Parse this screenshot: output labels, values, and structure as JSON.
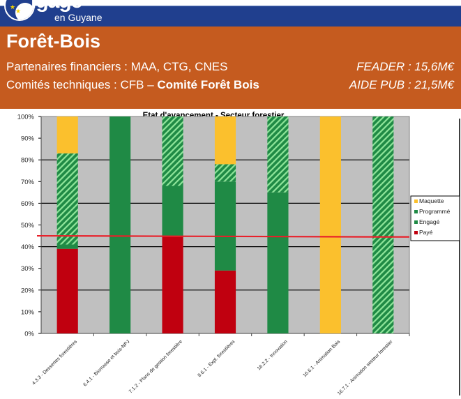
{
  "header": {
    "logo_word": "igage",
    "logo_prefix": "S",
    "logo_sub": "en Guyane",
    "section_title": "Forêt-Bois",
    "partners_label": "Partenaires financiers : MAA, CTG, CNES",
    "committees_prefix": "Comités techniques : CFB – ",
    "committees_bold": "Comité Forêt Bois",
    "feader": "FEADER : 15,6M€",
    "aide_pub": "AIDE PUB : 21,5M€"
  },
  "colors": {
    "blue_band": "#203f8e",
    "orange_band": "#c55b1f",
    "maquette": "#fbc02d",
    "programme": "#1f8a45",
    "programme_hatch": "#8fe59a",
    "engage": "#1f8a45",
    "paye": "#c0000f",
    "plot_bg": "#c0c0c0",
    "reference_line": "#e8202a"
  },
  "chart_data": {
    "type": "bar",
    "stacked": true,
    "title": "Etat d'avancement - Secteur forestier",
    "xlabel": "",
    "ylabel": "",
    "ylim": [
      0,
      100
    ],
    "y_ticks": [
      "0%",
      "10%",
      "20%",
      "30%",
      "40%",
      "50%",
      "60%",
      "70%",
      "80%",
      "90%",
      "100%"
    ],
    "grid": true,
    "legend_position": "right",
    "categories": [
      "4.3.3 - Dessertes forestières",
      "6.4.1 - Biomasse et bois-NPJ",
      "7.1.2 - Plans de gestion forestière",
      "8.6.1 - Expl. forestières",
      "16.2.2 - Innovation",
      "16.6.1 - Animation Bois",
      "16.7.1 - Animation secteur forestier"
    ],
    "series": [
      {
        "name": "Payé",
        "values": [
          39,
          0,
          45,
          29,
          0,
          0,
          0
        ]
      },
      {
        "name": "Engagé",
        "values": [
          2,
          100,
          23,
          41,
          65,
          0,
          0
        ]
      },
      {
        "name": "Programmé",
        "values": [
          42,
          0,
          32,
          8,
          35,
          0,
          100
        ]
      },
      {
        "name": "Maquette",
        "values": [
          17,
          0,
          0,
          22,
          0,
          100,
          0
        ]
      }
    ],
    "legend": [
      "Maquette",
      "Programmé",
      "Engagé",
      "Payé"
    ],
    "reference_line": {
      "start": 45,
      "end": 44.5,
      "label": ""
    }
  }
}
